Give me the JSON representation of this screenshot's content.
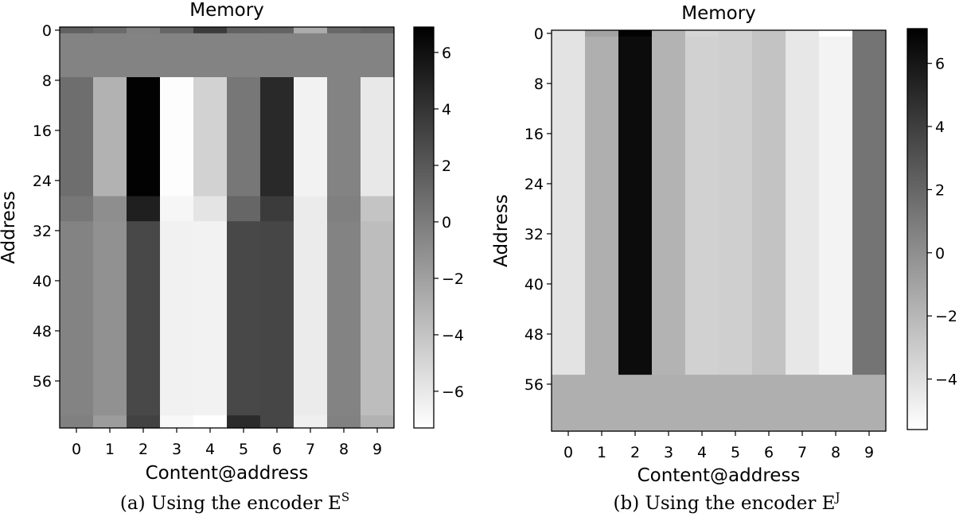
{
  "chart_data": [
    {
      "type": "heatmap",
      "title": "Memory",
      "xlabel": "Content@address",
      "ylabel": "Address",
      "caption": "(a) Using the encoder E",
      "caption_sup": "S",
      "colormap": "gray_r",
      "x_ticks": [
        "0",
        "1",
        "2",
        "3",
        "4",
        "5",
        "6",
        "7",
        "8",
        "9"
      ],
      "y_ticks": [
        "0",
        "8",
        "16",
        "24",
        "32",
        "40",
        "48",
        "56"
      ],
      "rows": 64,
      "cols": 10,
      "colorbar": {
        "vmin": -7.3,
        "vmax": 6.9,
        "ticks": [
          6,
          4,
          2,
          0,
          -2,
          -4,
          -6
        ],
        "tick_labels": [
          "6",
          "4",
          "2",
          "0",
          "−2",
          "−4",
          "−6"
        ]
      },
      "bands": [
        {
          "row_start": 0,
          "row_end": 1,
          "values": [
            1.5,
            1.0,
            -0.3,
            1.2,
            3.6,
            1.5,
            1.4,
            -2.7,
            1.1,
            1.5
          ]
        },
        {
          "row_start": 1,
          "row_end": 8,
          "values": [
            -0.4,
            -0.4,
            -0.4,
            -0.4,
            -0.4,
            -0.4,
            -0.4,
            -0.4,
            -0.4,
            -0.4
          ]
        },
        {
          "row_start": 8,
          "row_end": 27,
          "values": [
            0.8,
            -3.0,
            6.8,
            -7.2,
            -4.8,
            0.3,
            4.6,
            -6.6,
            -0.4,
            -6.0
          ]
        },
        {
          "row_start": 27,
          "row_end": 31,
          "values": [
            0.3,
            -1.0,
            5.2,
            -6.8,
            -5.8,
            1.2,
            3.6,
            -6.2,
            -0.2,
            -4.0
          ]
        },
        {
          "row_start": 31,
          "row_end": 62,
          "values": [
            -0.4,
            -1.2,
            2.9,
            -6.5,
            -6.6,
            2.9,
            3.0,
            -6.2,
            -0.4,
            -3.6
          ]
        },
        {
          "row_start": 62,
          "row_end": 64,
          "values": [
            -0.2,
            -1.8,
            3.2,
            -6.9,
            -7.3,
            4.5,
            3.0,
            -6.4,
            -0.3,
            -3.0
          ]
        }
      ]
    },
    {
      "type": "heatmap",
      "title": "Memory",
      "xlabel": "Content@address",
      "ylabel": "Address",
      "caption": "(b) Using the encoder E",
      "caption_sup": "J",
      "colormap": "gray_r",
      "x_ticks": [
        "0",
        "1",
        "2",
        "3",
        "4",
        "5",
        "6",
        "7",
        "8",
        "9"
      ],
      "y_ticks": [
        "0",
        "8",
        "16",
        "24",
        "32",
        "40",
        "48",
        "56"
      ],
      "rows": 64,
      "cols": 10,
      "colorbar": {
        "vmin": -5.6,
        "vmax": 7.1,
        "ticks": [
          6,
          4,
          2,
          0,
          -2,
          -4
        ],
        "tick_labels": [
          "6",
          "4",
          "2",
          "0",
          "−2",
          "−4"
        ]
      },
      "bands": [
        {
          "row_start": 0,
          "row_end": 1,
          "values": [
            -4.2,
            -1.0,
            7.0,
            -1.8,
            -3.5,
            -3.2,
            -2.6,
            -4.4,
            -5.6,
            1.3
          ]
        },
        {
          "row_start": 1,
          "row_end": 55,
          "values": [
            -4.2,
            -1.6,
            6.5,
            -1.8,
            -3.3,
            -3.2,
            -2.6,
            -4.4,
            -5.0,
            1.3
          ]
        },
        {
          "row_start": 55,
          "row_end": 64,
          "values": [
            -1.6,
            -1.6,
            -1.6,
            -1.6,
            -1.6,
            -1.6,
            -1.6,
            -1.6,
            -1.6,
            -1.6
          ]
        }
      ]
    }
  ]
}
